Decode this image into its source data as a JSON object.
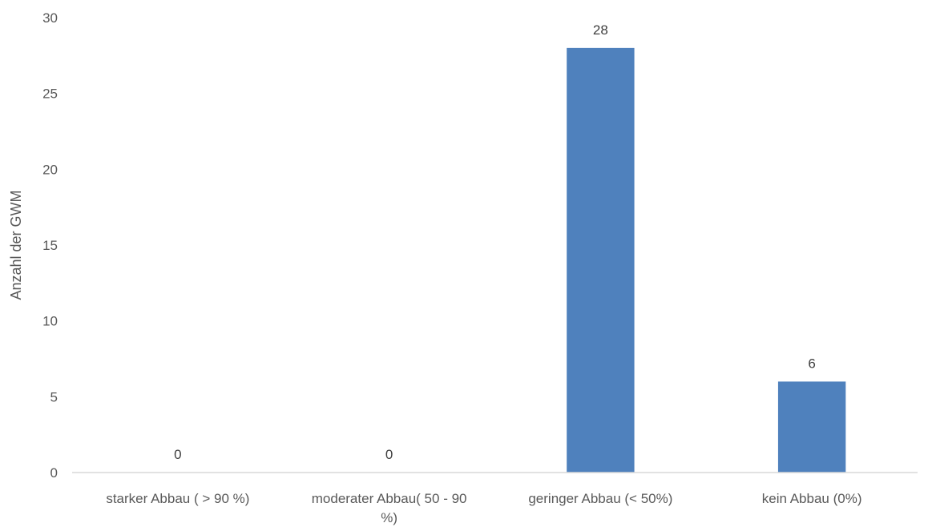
{
  "chart_data": {
    "type": "bar",
    "title": "",
    "xlabel": "",
    "ylabel": "Anzahl der GWM",
    "categories": [
      [
        "starker Abbau ( > 90 %)"
      ],
      [
        "moderater Abbau( 50 - 90",
        "%)"
      ],
      [
        "geringer Abbau (< 50%)"
      ],
      [
        "kein Abbau (0%)"
      ]
    ],
    "values": [
      0,
      0,
      28,
      6
    ],
    "data_labels": [
      "0",
      "0",
      "28",
      "6"
    ],
    "ylim": [
      0,
      30
    ],
    "yticks": [
      0,
      5,
      10,
      15,
      20,
      25,
      30
    ],
    "grid": false,
    "legend": "none",
    "bar_color": "#4f81bd",
    "axis_color": "#d9d9d9"
  }
}
